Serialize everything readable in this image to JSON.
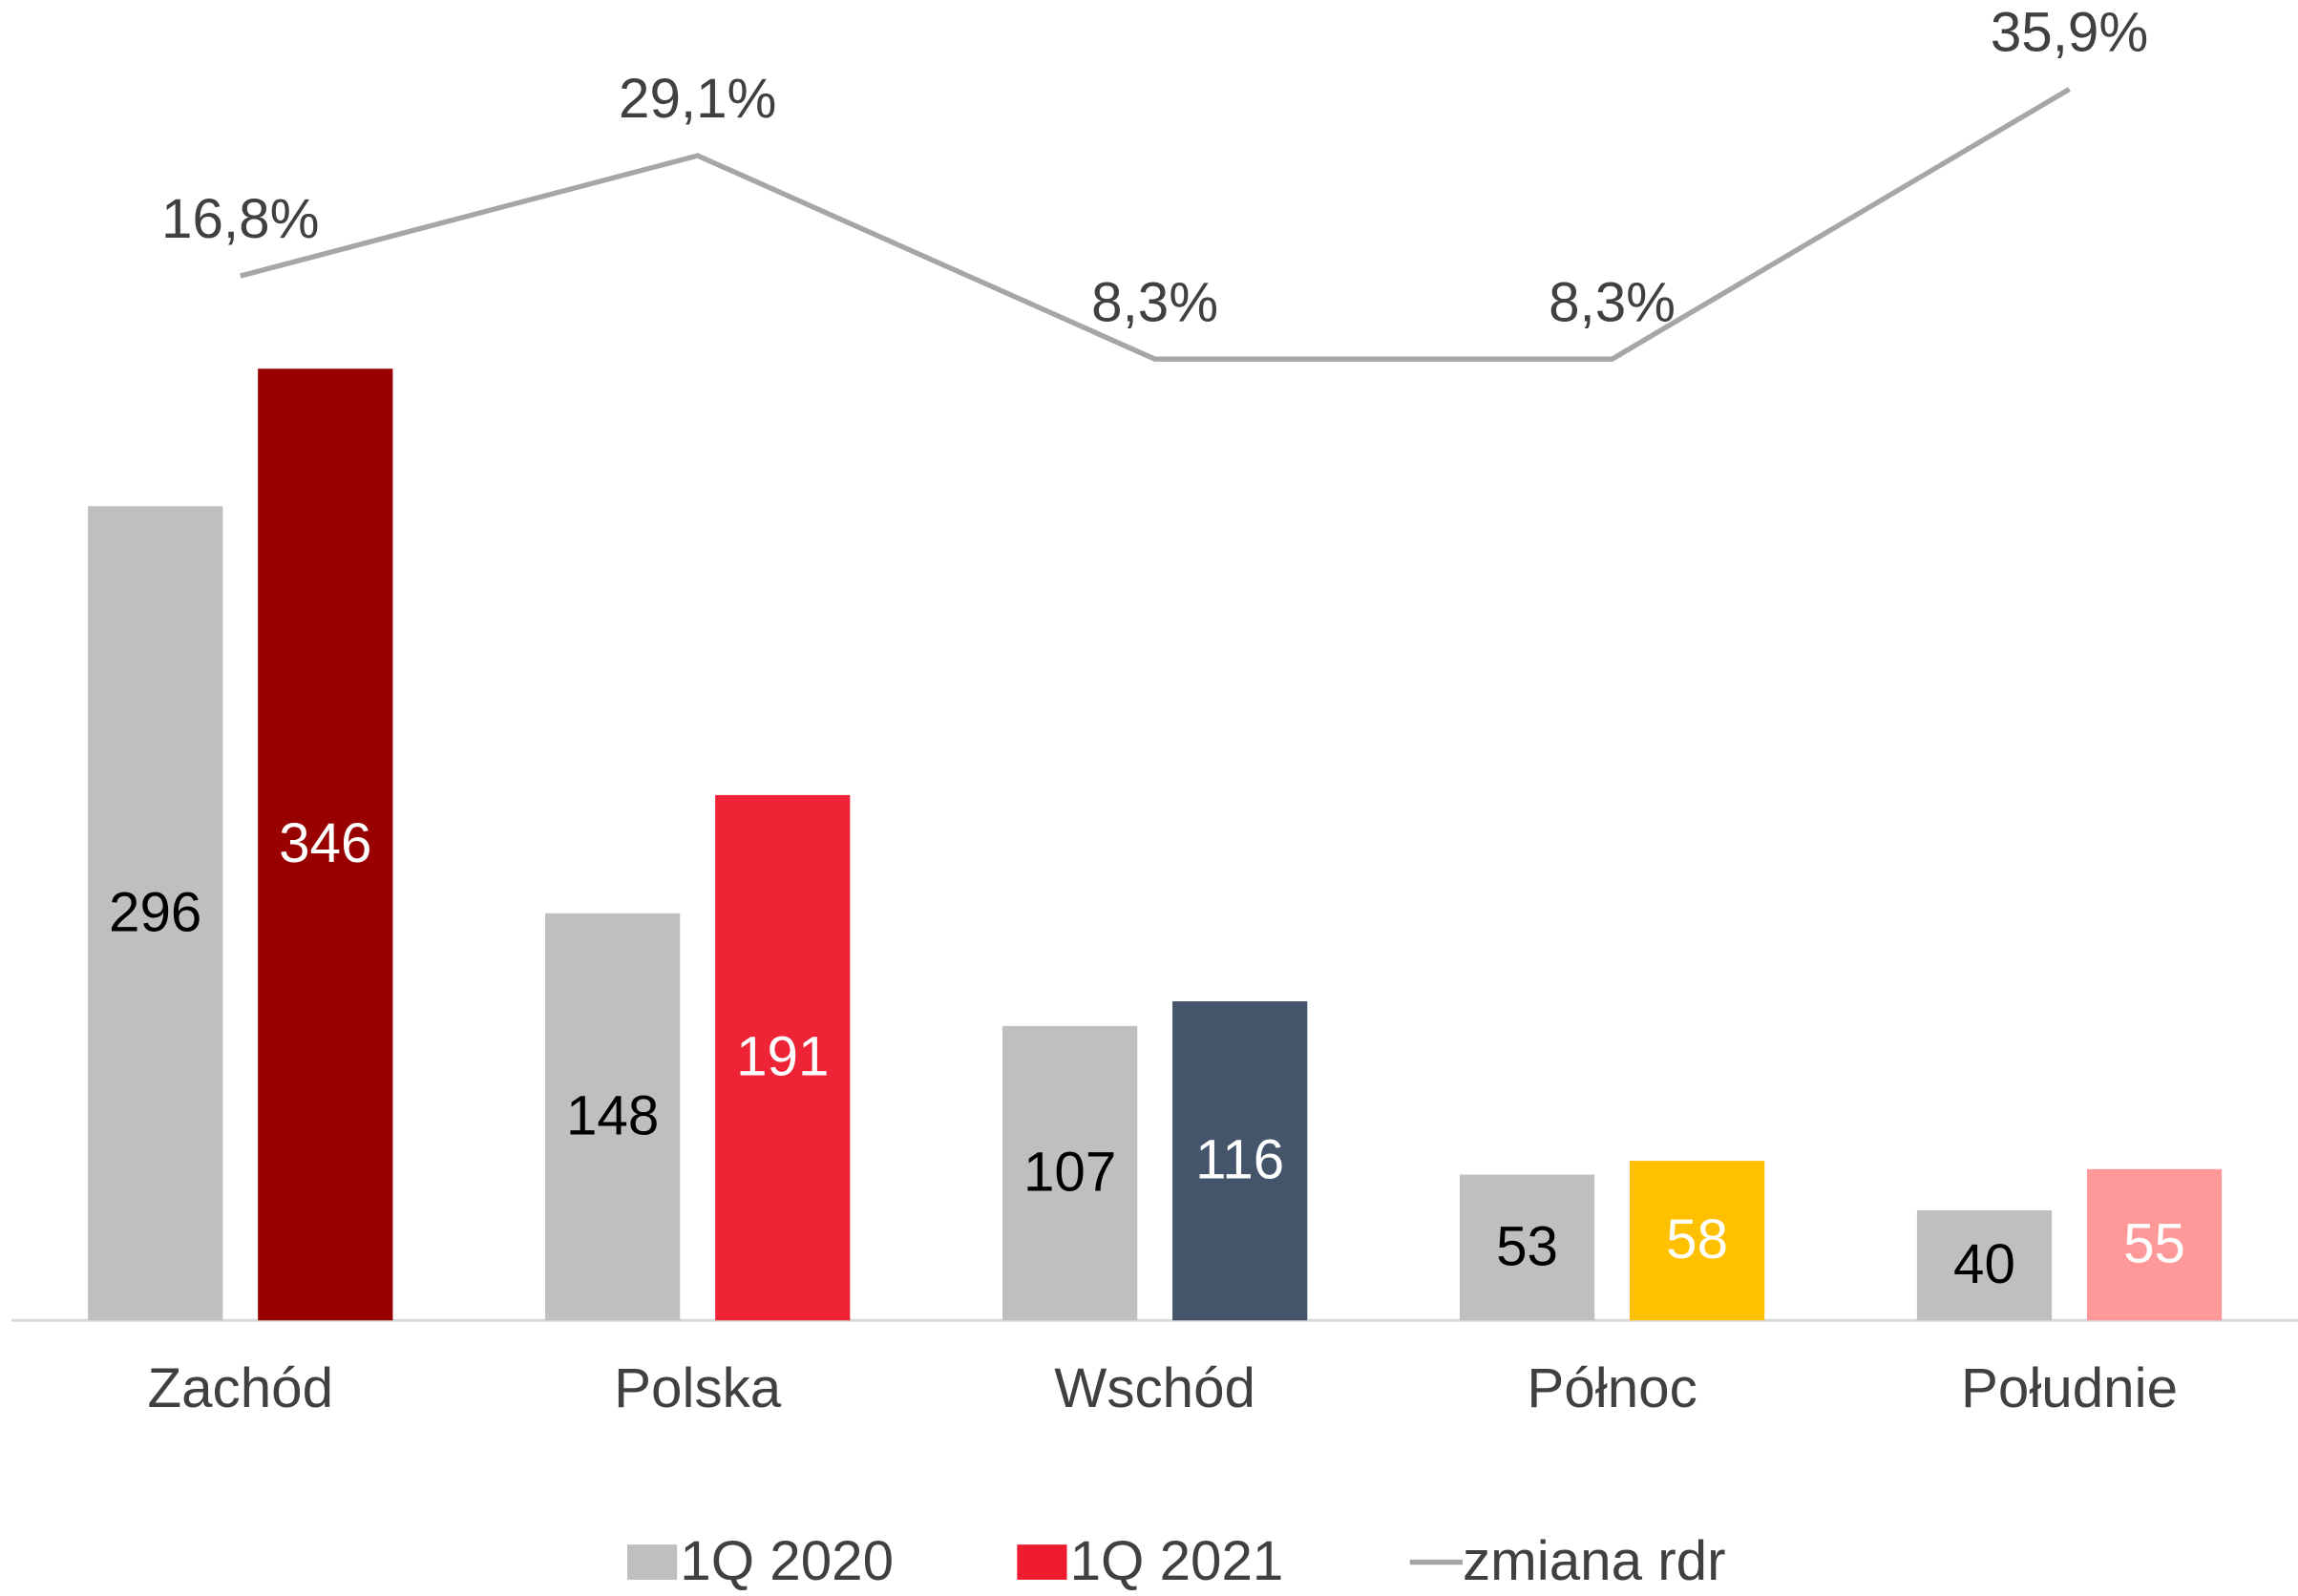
{
  "chart_data": {
    "type": "bar",
    "categories": [
      "Zachód",
      "Polska",
      "Wschód",
      "Północ",
      "Południe"
    ],
    "series": [
      {
        "name": "1Q 2020",
        "color": "#bfbfbf",
        "values": [
          296,
          148,
          107,
          53,
          40
        ]
      },
      {
        "name": "1Q 2021",
        "color": "#ee1c2e",
        "bar_colors": [
          "#990000",
          "#ee2436",
          "#44546a",
          "#ffc000",
          "#ff9999"
        ],
        "values": [
          346,
          191,
          116,
          58,
          55
        ]
      },
      {
        "name": "zmiana rdr",
        "type": "line",
        "axis": "y2",
        "color": "#a6a6a6",
        "values": [
          16.8,
          29.1,
          8.3,
          8.3,
          35.9
        ],
        "value_labels": [
          "16,8%",
          "29,1%",
          "8,3%",
          "8,3%",
          "35,9%"
        ]
      }
    ],
    "ylim": [
      0,
      480
    ],
    "y2lim": [
      -90,
      45
    ],
    "legend": "bottom"
  }
}
